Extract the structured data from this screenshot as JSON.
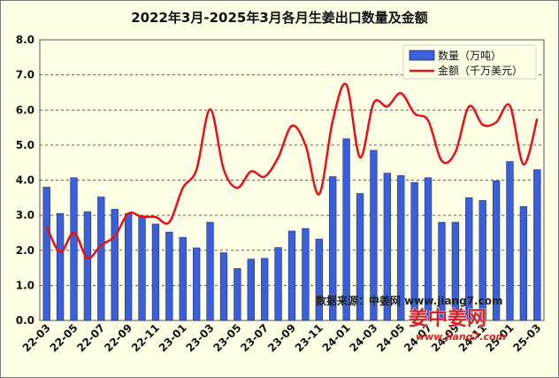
{
  "chart_data": {
    "type": "bar",
    "title": "2022年3月-2025年3月各月生姜出口数量及金额",
    "xlabel": "",
    "ylabel": "",
    "ylim": [
      0,
      8
    ],
    "yticks": [
      "0.0",
      "1.0",
      "2.0",
      "3.0",
      "4.0",
      "5.0",
      "6.0",
      "7.0",
      "8.0"
    ],
    "grid": true,
    "legend_position": "top-right",
    "categories": [
      "22-03",
      "22-04",
      "22-05",
      "22-06",
      "22-07",
      "22-08",
      "22-09",
      "22-10",
      "22-11",
      "22-12",
      "23-01",
      "23-02",
      "23-03",
      "23-04",
      "23-05",
      "23-06",
      "23-07",
      "23-08",
      "23-09",
      "23-10",
      "23-11",
      "23-12",
      "24-01",
      "24-02",
      "24-03",
      "24-04",
      "24-05",
      "24-06",
      "24-07",
      "24-08",
      "24-09",
      "24-10",
      "24-11",
      "24-12",
      "25-01",
      "25-02",
      "25-03"
    ],
    "x_tick_labels": [
      "22-03",
      "22-05",
      "22-07",
      "22-09",
      "22-11",
      "23-01",
      "23-03",
      "23-05",
      "23-07",
      "23-09",
      "23-11",
      "24-01",
      "24-03",
      "24-05",
      "24-07",
      "24-09",
      "24-11",
      "25-01",
      "25-03"
    ],
    "series": [
      {
        "name": "数量（万吨）",
        "type": "bar",
        "color": "#3a5fd9",
        "values": [
          3.8,
          3.05,
          4.07,
          3.1,
          3.52,
          3.17,
          3.05,
          2.98,
          2.75,
          2.52,
          2.37,
          2.07,
          2.8,
          1.93,
          1.48,
          1.75,
          1.77,
          2.08,
          2.55,
          2.62,
          2.32,
          4.1,
          5.18,
          3.62,
          4.85,
          4.2,
          4.13,
          3.93,
          4.07,
          2.8,
          2.8,
          3.5,
          3.42,
          3.98,
          4.53,
          3.25,
          4.3
        ]
      },
      {
        "name": "金额（千万美元）",
        "type": "line",
        "color": "#e8101a",
        "values": [
          2.68,
          1.95,
          2.5,
          1.78,
          2.15,
          2.4,
          3.05,
          2.95,
          2.95,
          2.8,
          3.78,
          4.3,
          6.02,
          4.3,
          3.78,
          4.25,
          4.1,
          4.65,
          5.55,
          5.0,
          3.6,
          5.7,
          6.72,
          4.65,
          6.2,
          6.1,
          6.48,
          5.9,
          5.7,
          4.55,
          4.8,
          6.1,
          5.58,
          5.65,
          6.12,
          4.45,
          5.75
        ]
      }
    ],
    "annotation": "数据来源：中姜网 www.jiang7.com"
  },
  "watermark": {
    "logo_text": "姜中姜网",
    "logo_url": "www.jiang7.com"
  }
}
